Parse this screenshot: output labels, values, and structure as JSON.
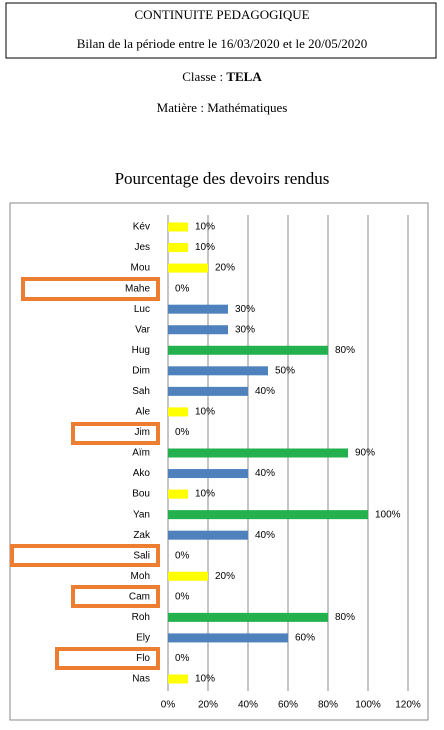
{
  "header": {
    "title": "CONTINUITE PEDAGOGIQUE",
    "period": "Bilan de la période entre le 16/03/2020 et le 20/05/2020",
    "class_label": "Classe :",
    "class_value": "TELA",
    "subject": "Matière : Mathématiques"
  },
  "chart_data": {
    "type": "bar",
    "orientation": "horizontal",
    "title": "Pourcentage des devoirs rendus",
    "categories": [
      "Kév",
      "Jes",
      "Mou",
      "Mahe",
      "Luc",
      "Var",
      "Hug",
      "Dim",
      "Sah",
      "Ale",
      "Jim",
      "Aïm",
      "Ako",
      "Bou",
      "Yan",
      "Zak",
      "Sali",
      "Moh",
      "Cam",
      "Roh",
      "Ely",
      "Flo",
      "Nas"
    ],
    "values": [
      10,
      10,
      20,
      0,
      30,
      30,
      80,
      50,
      40,
      10,
      0,
      90,
      40,
      10,
      100,
      40,
      0,
      20,
      0,
      80,
      60,
      0,
      10
    ],
    "value_labels": [
      "10%",
      "10%",
      "20%",
      "0%",
      "30%",
      "30%",
      "80%",
      "50%",
      "40%",
      "10%",
      "0%",
      "90%",
      "40%",
      "10%",
      "100%",
      "40%",
      "0%",
      "20%",
      "0%",
      "80%",
      "60%",
      "0%",
      "10%"
    ],
    "colors": [
      "#ffff00",
      "#ffff00",
      "#ffff00",
      "#ffff00",
      "#4f81bd",
      "#4f81bd",
      "#22b14c",
      "#4f81bd",
      "#4f81bd",
      "#ffff00",
      "#ffff00",
      "#22b14c",
      "#4f81bd",
      "#ffff00",
      "#22b14c",
      "#4f81bd",
      "#ffff00",
      "#ffff00",
      "#ffff00",
      "#22b14c",
      "#4f81bd",
      "#ffff00",
      "#ffff00"
    ],
    "xlim": [
      0,
      120
    ],
    "xticks": [
      {
        "value": 0,
        "label": "0%"
      },
      {
        "value": 20,
        "label": "20%"
      },
      {
        "value": 40,
        "label": "40%"
      },
      {
        "value": 60,
        "label": "60%"
      },
      {
        "value": 80,
        "label": "80%"
      },
      {
        "value": 100,
        "label": "100%"
      },
      {
        "value": 120,
        "label": "120%"
      }
    ],
    "grid": true
  }
}
